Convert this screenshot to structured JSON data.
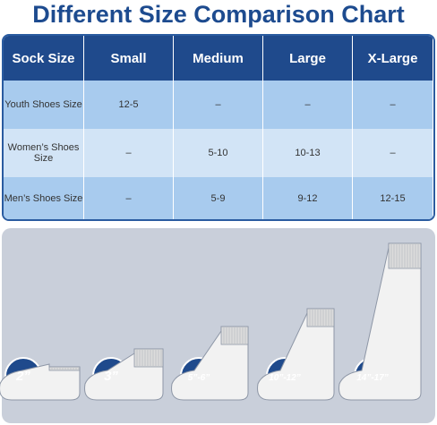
{
  "title": "Different Size Comparison Chart",
  "table": {
    "header": [
      "Sock Size",
      "Small",
      "Medium",
      "Large",
      "X-Large"
    ],
    "rows": [
      [
        "Youth Shoes Size",
        "12-5",
        "–",
        "–",
        "–"
      ],
      [
        "Women’s Shoes Size",
        "–",
        "5-10",
        "10-13",
        "–"
      ],
      [
        "Men’s Shoes Size",
        "–",
        "5-9",
        "9-12",
        "12-15"
      ]
    ]
  },
  "socks": [
    {
      "label": "2”"
    },
    {
      "label": "3”"
    },
    {
      "label": "5”-6”"
    },
    {
      "label": "10”-12”"
    },
    {
      "label": "14”-17”"
    }
  ]
}
